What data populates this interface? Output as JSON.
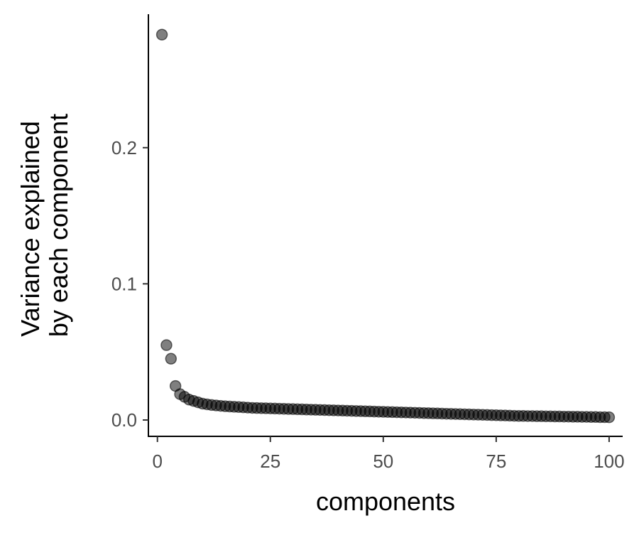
{
  "chart_data": {
    "type": "scatter",
    "title": "",
    "xlabel": "components",
    "ylabel_lines": [
      "Variance explained",
      "by each component"
    ],
    "xlim": [
      -2,
      103
    ],
    "ylim": [
      -0.012,
      0.298
    ],
    "x_ticks": [
      0,
      25,
      50,
      75,
      100
    ],
    "x_tick_labels": [
      "0",
      "25",
      "50",
      "75",
      "100"
    ],
    "y_ticks": [
      0.0,
      0.1,
      0.2
    ],
    "y_tick_labels": [
      "0.0",
      "0.1",
      "0.2"
    ],
    "grid": false,
    "legend": "none",
    "point_color": "#000000",
    "series": [
      {
        "x": [
          1,
          2,
          3,
          4,
          5,
          6,
          7,
          8,
          9,
          10,
          11,
          12,
          13,
          14,
          15,
          16,
          17,
          18,
          19,
          20,
          21,
          22,
          23,
          24,
          25,
          26,
          27,
          28,
          29,
          30,
          31,
          32,
          33,
          34,
          35,
          36,
          37,
          38,
          39,
          40,
          41,
          42,
          43,
          44,
          45,
          46,
          47,
          48,
          49,
          50,
          51,
          52,
          53,
          54,
          55,
          56,
          57,
          58,
          59,
          60,
          61,
          62,
          63,
          64,
          65,
          66,
          67,
          68,
          69,
          70,
          71,
          72,
          73,
          74,
          75,
          76,
          77,
          78,
          79,
          80,
          81,
          82,
          83,
          84,
          85,
          86,
          87,
          88,
          89,
          90,
          91,
          92,
          93,
          94,
          95,
          96,
          97,
          98,
          99,
          100
        ],
        "y": [
          0.283,
          0.055,
          0.045,
          0.025,
          0.019,
          0.017,
          0.015,
          0.014,
          0.013,
          0.012,
          0.0115,
          0.011,
          0.0107,
          0.0104,
          0.0101,
          0.0099,
          0.0097,
          0.0095,
          0.0093,
          0.0091,
          0.0089,
          0.0088,
          0.0087,
          0.0086,
          0.0085,
          0.0084,
          0.0083,
          0.0082,
          0.0081,
          0.008,
          0.0079,
          0.0078,
          0.0077,
          0.0076,
          0.0075,
          0.0074,
          0.0073,
          0.0072,
          0.0071,
          0.007,
          0.0069,
          0.0068,
          0.0067,
          0.0066,
          0.0065,
          0.0064,
          0.0063,
          0.0062,
          0.0061,
          0.006,
          0.0059,
          0.0058,
          0.0057,
          0.0056,
          0.0055,
          0.0054,
          0.0053,
          0.0052,
          0.0051,
          0.005,
          0.0049,
          0.0048,
          0.0047,
          0.0046,
          0.0045,
          0.0044,
          0.0043,
          0.0042,
          0.0041,
          0.004,
          0.0039,
          0.0038,
          0.0037,
          0.0036,
          0.0035,
          0.0034,
          0.0033,
          0.0032,
          0.0031,
          0.003,
          0.003,
          0.0029,
          0.0029,
          0.0028,
          0.0028,
          0.0027,
          0.0027,
          0.0026,
          0.0026,
          0.0025,
          0.0025,
          0.0024,
          0.0024,
          0.0023,
          0.0023,
          0.0022,
          0.0022,
          0.0021,
          0.0021,
          0.002
        ]
      }
    ]
  }
}
